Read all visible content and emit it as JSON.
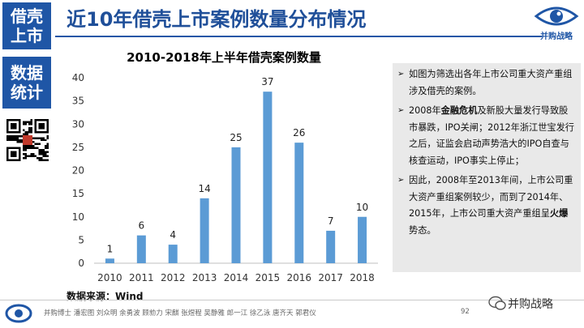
{
  "sidebar": {
    "block1": [
      "借壳",
      "上市"
    ],
    "block2": [
      "数据",
      "统计"
    ],
    "qr_stamp": [
      "并购",
      "战略"
    ]
  },
  "header": {
    "title": "近10年借壳上市案例数量分布情况",
    "logo_text": "并购战略"
  },
  "chart_data": {
    "type": "bar",
    "title": "2010-2018年上半年借壳案例数量",
    "categories": [
      "2010",
      "2011",
      "2012",
      "2013",
      "2014",
      "2015",
      "2016",
      "2017",
      "2018"
    ],
    "values": [
      1,
      6,
      4,
      14,
      25,
      37,
      26,
      7,
      10
    ],
    "ylim": [
      0,
      40
    ],
    "yticks": [
      0,
      5,
      10,
      15,
      20,
      25,
      30,
      35,
      40
    ],
    "xlabel": "",
    "ylabel": "",
    "grid": false,
    "bar_color": "#5b9bd5"
  },
  "source": "数据来源：Wind",
  "notes": [
    {
      "parts": [
        {
          "text": "如图为筛选出各年上市公司重大资产重组涉及借壳的案例。",
          "bold": false
        }
      ]
    },
    {
      "parts": [
        {
          "text": "2008年",
          "bold": false
        },
        {
          "text": "金融危机",
          "bold": true
        },
        {
          "text": "及新股大量发行导致股市暴跌，IPO关闸；2012年浙江世宝发行之后，证监会启动声势浩大的IPO自查与核查运动，IPO事实上停止；",
          "bold": false
        }
      ]
    },
    {
      "parts": [
        {
          "text": "因此，2008年至2013年间，上市公司重大资产重组案例较少，而到了2014年、2015年，上市公司重大资产重组呈",
          "bold": false
        },
        {
          "text": "火爆",
          "bold": true
        },
        {
          "text": "势态。",
          "bold": false
        }
      ]
    }
  ],
  "footer": {
    "names": "并购博士  潘宏图  刘众明  余勇波  顾勍力  宋麒  张煜程  吴静雅  郎一江  徐乙泳  唐齐天  郭君仪",
    "page": "92",
    "wechat": "并购战略"
  },
  "colors": {
    "brand_blue": "#1f56a6",
    "title_blue": "#1f4f99",
    "bar": "#5b9bd5",
    "panel_gray": "#e9e9e9"
  }
}
